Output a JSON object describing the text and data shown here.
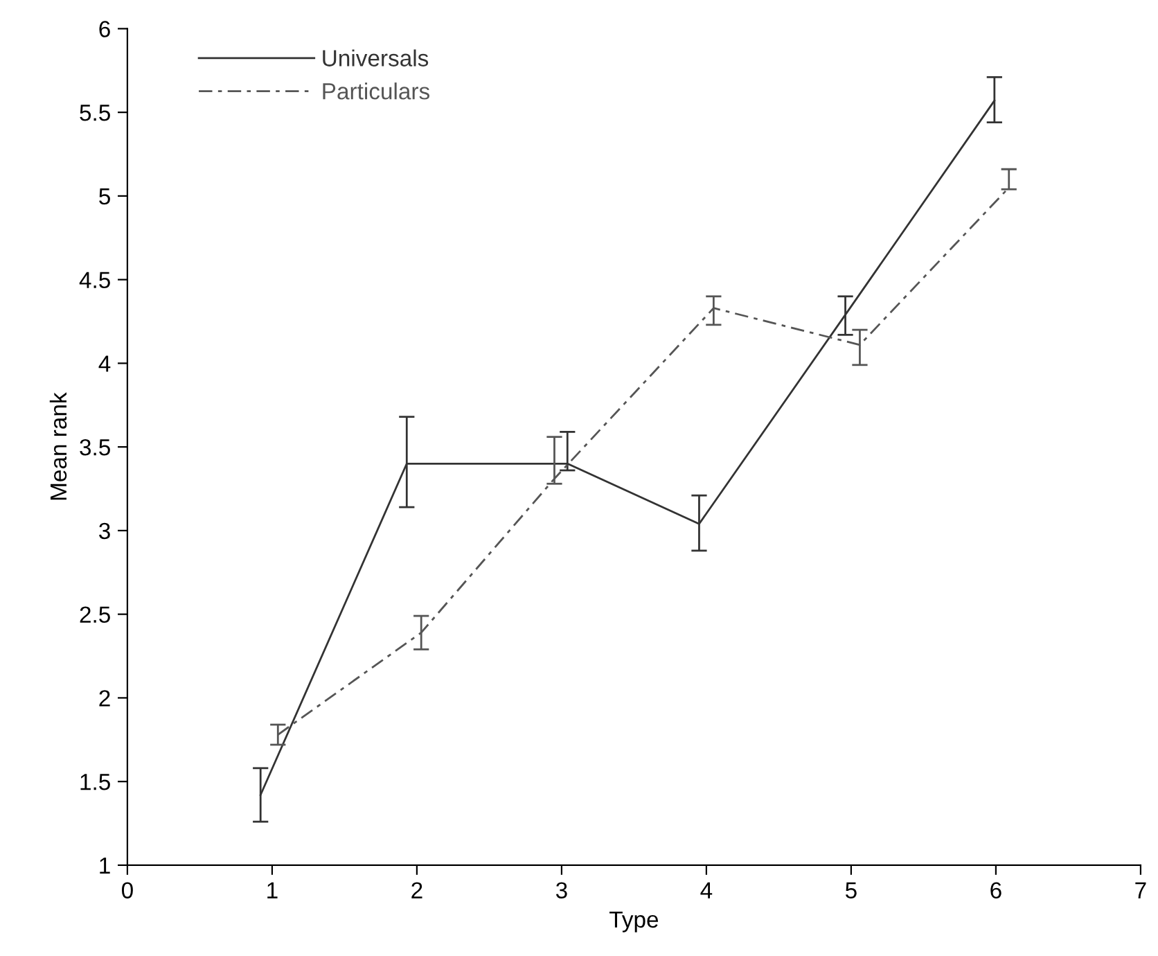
{
  "chart_data": {
    "type": "line",
    "xlabel": "Type",
    "ylabel": "Mean rank",
    "xlim": [
      0,
      7
    ],
    "xticks": [
      0,
      1,
      2,
      3,
      4,
      5,
      6,
      7
    ],
    "ylim": [
      1,
      6
    ],
    "yticks": [
      1,
      1.5,
      2,
      2.5,
      3,
      3.5,
      4,
      4.5,
      5,
      5.5,
      6
    ],
    "grid": false,
    "legend": "top left",
    "marker": "none",
    "series": [
      {
        "name": "Universals",
        "color": "#333333",
        "line_style": "solid",
        "x": [
          0.92,
          1.93,
          3.04,
          3.95,
          4.96,
          5.99
        ],
        "values": [
          1.42,
          3.4,
          3.4,
          3.04,
          4.29,
          5.57
        ],
        "errors": [
          [
            1.26,
            1.58
          ],
          [
            3.14,
            3.68
          ],
          [
            3.36,
            3.59
          ],
          [
            2.88,
            3.21
          ],
          [
            4.17,
            4.4
          ],
          [
            5.44,
            5.71
          ]
        ]
      },
      {
        "name": "Particulars",
        "color": "#555555",
        "line_style": "dashed",
        "x": [
          1.04,
          2.03,
          2.95,
          4.05,
          5.06,
          6.09
        ],
        "values": [
          1.78,
          2.39,
          3.31,
          4.33,
          4.11,
          5.05
        ],
        "errors": [
          [
            1.72,
            1.84
          ],
          [
            2.29,
            2.49
          ],
          [
            3.28,
            3.56
          ],
          [
            4.23,
            4.4
          ],
          [
            3.99,
            4.2
          ],
          [
            5.04,
            5.16
          ]
        ]
      }
    ]
  }
}
